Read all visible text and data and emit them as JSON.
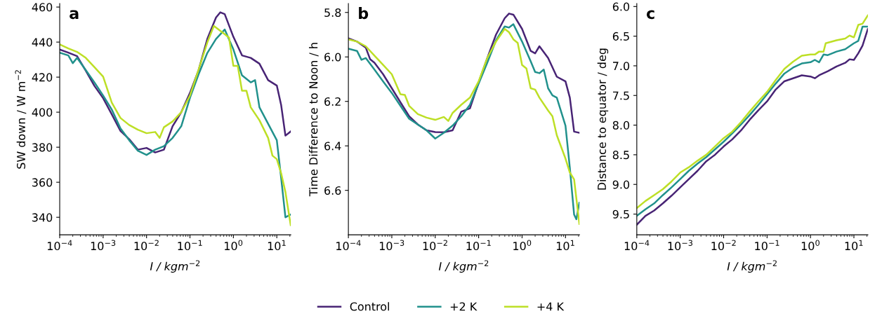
{
  "chart_data": [
    {
      "type": "line",
      "title": "a",
      "xlabel": "I / kgm$^{−2}$",
      "ylabel": "SW down / W m$^{−2}$",
      "log": "x",
      "legend": "bottom",
      "grid": false,
      "xlim": [
        0.0001,
        21
      ],
      "xticks": [
        {
          "value": 0.0001,
          "label": "10$^{−4}$"
        },
        {
          "value": 0.001,
          "label": "10$^{−3}$"
        },
        {
          "value": 0.01,
          "label": "10$^{−2}$"
        },
        {
          "value": 0.1,
          "label": "10$^{−1}$"
        },
        {
          "value": 1,
          "label": "10$^{0}$"
        },
        {
          "value": 10,
          "label": "10$^{1}$"
        }
      ],
      "ylim": [
        330,
        462
      ],
      "yticks": [
        340,
        360,
        380,
        400,
        420,
        440,
        460
      ],
      "series": [
        {
          "name": "Control",
          "color": "#482475",
          "x": [
            0.0001,
            0.000158,
            0.000251,
            0.000398,
            0.000631,
            0.001,
            0.00158,
            0.00251,
            0.00398,
            0.00631,
            0.01,
            0.0158,
            0.0251,
            0.0398,
            0.0631,
            0.1,
            0.158,
            0.251,
            0.398,
            0.501,
            0.631,
            1,
            1.58,
            2.51,
            3.98,
            6.31,
            10,
            12.6,
            15.8,
            20.9
          ],
          "values": [
            435.8,
            434,
            432,
            423.7,
            415,
            408,
            398.8,
            389.3,
            384.6,
            378.6,
            379.6,
            377,
            378.6,
            392,
            400,
            411,
            424,
            441.8,
            454,
            457,
            456,
            443,
            432.4,
            431,
            427.7,
            418.3,
            415.2,
            404,
            386.6,
            389
          ]
        },
        {
          "name": "+2 K",
          "color": "#21918c",
          "x": [
            0.0001,
            0.000158,
            0.0002,
            0.000251,
            0.000398,
            0.000631,
            0.001,
            0.00158,
            0.00251,
            0.00398,
            0.00631,
            0.01,
            0.0158,
            0.0251,
            0.0398,
            0.0631,
            0.1,
            0.158,
            0.251,
            0.398,
            0.631,
            1,
            1.58,
            2.51,
            3.16,
            3.98,
            6.31,
            10,
            12.6,
            15.8,
            20.9
          ],
          "values": [
            434,
            432.4,
            428,
            431,
            424,
            417,
            409.5,
            401.5,
            390.7,
            384,
            378,
            375.6,
            378.6,
            380.6,
            385.3,
            392,
            408.2,
            421.6,
            433.8,
            441.8,
            447.2,
            435.8,
            421,
            417,
            418.3,
            402.8,
            393.4,
            384,
            362.4,
            340,
            341.6
          ]
        },
        {
          "name": "+4 K",
          "color": "#bddf26",
          "x": [
            0.0001,
            0.000158,
            0.000251,
            0.000398,
            0.000631,
            0.001,
            0.00158,
            0.00251,
            0.00398,
            0.00631,
            0.01,
            0.0158,
            0.02,
            0.0251,
            0.0398,
            0.0631,
            0.1,
            0.158,
            0.251,
            0.355,
            0.631,
            0.794,
            1,
            1.26,
            1.58,
            2,
            2.51,
            3.98,
            6.31,
            7.94,
            10,
            12.6,
            15.8,
            20.9
          ],
          "values": [
            438.7,
            436.4,
            434.4,
            431,
            425.7,
            420.3,
            405.5,
            396.7,
            392.7,
            390,
            388,
            388.7,
            385.3,
            391.4,
            394.7,
            400,
            409.5,
            424.3,
            439.8,
            449.2,
            444.5,
            442.5,
            426.4,
            426.4,
            412.2,
            412.2,
            402.8,
            395.4,
            385.3,
            375.2,
            373.2,
            365.1,
            354.4,
            335.5
          ]
        }
      ]
    },
    {
      "type": "line",
      "title": "b",
      "xlabel": "I / kgm$^{−2}$",
      "ylabel": "Time Difference to Noon / h",
      "log": "x",
      "grid": false,
      "xlim": [
        0.0001,
        21
      ],
      "xticks": [
        {
          "value": 0.0001,
          "label": "10$^{−4}$"
        },
        {
          "value": 0.001,
          "label": "10$^{−3}$"
        },
        {
          "value": 0.01,
          "label": "10$^{−2}$"
        },
        {
          "value": 0.1,
          "label": "10$^{−1}$"
        },
        {
          "value": 1,
          "label": "10$^{0}$"
        },
        {
          "value": 10,
          "label": "10$^{1}$"
        }
      ],
      "ylim": [
        6.8,
        5.76
      ],
      "yticks": [
        5.8,
        {
          "value": 6,
          "label": "6.0"
        },
        6.2,
        6.4,
        6.6
      ],
      "series": [
        {
          "color": "#482475",
          "x": [
            0.0001,
            0.000158,
            0.000251,
            0.000316,
            0.000398,
            0.000631,
            0.001,
            0.00158,
            0.00251,
            0.00398,
            0.00631,
            0.01,
            0.0158,
            0.0251,
            0.0398,
            0.0631,
            0.1,
            0.158,
            0.251,
            0.398,
            0.501,
            0.631,
            1,
            1.58,
            2,
            2.51,
            3.98,
            6.31,
            10,
            12.6,
            15.8,
            20.9
          ],
          "values": [
            5.916,
            5.931,
            5.958,
            6.01,
            6.026,
            6.078,
            6.141,
            6.204,
            6.267,
            6.304,
            6.33,
            6.338,
            6.339,
            6.33,
            6.246,
            6.231,
            6.115,
            6.005,
            5.9,
            5.826,
            5.805,
            5.81,
            5.874,
            5.973,
            5.984,
            5.952,
            6.005,
            6.089,
            6.11,
            6.183,
            6.336,
            6.341
          ]
        },
        {
          "color": "#21918c",
          "x": [
            0.0001,
            0.000158,
            0.0002,
            0.000251,
            0.000398,
            0.000631,
            0.001,
            0.00158,
            0.00251,
            0.00398,
            0.00631,
            0.01,
            0.0158,
            0.0251,
            0.0398,
            0.0631,
            0.1,
            0.158,
            0.251,
            0.398,
            0.501,
            0.631,
            1,
            1.58,
            2,
            2.51,
            3.16,
            3.98,
            5.01,
            6.31,
            10,
            12.6,
            15.8,
            17.8,
            20.9
          ],
          "values": [
            5.963,
            5.973,
            6.013,
            6.005,
            6.057,
            6.11,
            6.162,
            6.22,
            6.278,
            6.304,
            6.33,
            6.367,
            6.341,
            6.309,
            6.267,
            6.215,
            6.12,
            6.026,
            5.926,
            5.863,
            5.868,
            5.853,
            5.931,
            6.02,
            6.068,
            6.073,
            6.057,
            6.141,
            6.173,
            6.183,
            6.309,
            6.499,
            6.709,
            6.73,
            6.656
          ]
        },
        {
          "color": "#bddf26",
          "x": [
            0.0001,
            0.000158,
            0.000251,
            0.000398,
            0.000631,
            0.001,
            0.00158,
            0.002,
            0.00251,
            0.00398,
            0.00631,
            0.01,
            0.0158,
            0.02,
            0.0251,
            0.0398,
            0.0631,
            0.1,
            0.158,
            0.251,
            0.398,
            0.501,
            0.631,
            0.794,
            1,
            1.26,
            1.58,
            2,
            2.51,
            3.98,
            5.01,
            6.31,
            10,
            12.6,
            15.8,
            20.9
          ],
          "values": [
            5.921,
            5.931,
            5.952,
            5.994,
            6.036,
            6.078,
            6.168,
            6.171,
            6.22,
            6.257,
            6.273,
            6.283,
            6.27,
            6.288,
            6.252,
            6.215,
            6.183,
            6.11,
            6.005,
            5.931,
            5.874,
            5.889,
            5.921,
            5.937,
            6.036,
            6.052,
            6.141,
            6.147,
            6.183,
            6.241,
            6.267,
            6.352,
            6.457,
            6.52,
            6.551,
            6.751
          ]
        }
      ]
    },
    {
      "type": "line",
      "title": "c",
      "xlabel": "I / kgm$^{−2}$",
      "ylabel": "Distance to equator / deg",
      "log": "x",
      "grid": false,
      "xlim": [
        0.0001,
        21
      ],
      "xticks": [
        {
          "value": 0.0001,
          "label": "10$^{−4}$"
        },
        {
          "value": 0.001,
          "label": "10$^{−3}$"
        },
        {
          "value": 0.01,
          "label": "10$^{−2}$"
        },
        {
          "value": 0.1,
          "label": "10$^{−1}$"
        },
        {
          "value": 1,
          "label": "10$^{0}$"
        },
        {
          "value": 10,
          "label": "10$^{1}$"
        }
      ],
      "ylim": [
        9.85,
        5.95
      ],
      "yticks": [
        {
          "value": 6,
          "label": "6.0"
        },
        6.5,
        {
          "value": 7,
          "label": "7.0"
        },
        7.5,
        {
          "value": 8,
          "label": "8.0"
        },
        8.5,
        {
          "value": 9,
          "label": "9.0"
        },
        9.5
      ],
      "series": [
        {
          "color": "#482475",
          "x": [
            0.0001,
            0.000158,
            0.000251,
            0.000398,
            0.000631,
            0.001,
            0.00158,
            0.00251,
            0.00398,
            0.00631,
            0.01,
            0.0158,
            0.0251,
            0.0398,
            0.0631,
            0.1,
            0.158,
            0.251,
            0.398,
            0.631,
            1,
            1.26,
            1.58,
            2.51,
            3.98,
            6.31,
            7.94,
            10,
            12.6,
            15.8,
            20.9
          ],
          "values": [
            9.68,
            9.53,
            9.44,
            9.32,
            9.19,
            9.05,
            8.91,
            8.77,
            8.61,
            8.5,
            8.36,
            8.24,
            8.09,
            7.91,
            7.75,
            7.6,
            7.4,
            7.26,
            7.21,
            7.16,
            7.18,
            7.21,
            7.16,
            7.09,
            7.01,
            6.95,
            6.89,
            6.9,
            6.79,
            6.66,
            6.38
          ]
        },
        {
          "color": "#21918c",
          "x": [
            0.0001,
            0.000158,
            0.000251,
            0.000398,
            0.000631,
            0.001,
            0.00158,
            0.00251,
            0.00398,
            0.00631,
            0.01,
            0.0158,
            0.0251,
            0.0398,
            0.0631,
            0.1,
            0.158,
            0.251,
            0.398,
            0.631,
            1,
            1.26,
            1.58,
            2,
            2.51,
            3.98,
            6.31,
            10,
            12.6,
            15.8,
            20.9
          ],
          "values": [
            9.53,
            9.42,
            9.32,
            9.18,
            9.05,
            8.91,
            8.77,
            8.65,
            8.54,
            8.41,
            8.28,
            8.14,
            7.99,
            7.83,
            7.66,
            7.48,
            7.3,
            7.13,
            7.03,
            6.96,
            6.94,
            6.9,
            6.94,
            6.81,
            6.82,
            6.76,
            6.72,
            6.62,
            6.58,
            6.34,
            6.34
          ]
        },
        {
          "color": "#bddf26",
          "x": [
            0.0001,
            0.000158,
            0.000251,
            0.000398,
            0.000631,
            0.001,
            0.00158,
            0.00251,
            0.00398,
            0.00631,
            0.01,
            0.0158,
            0.0251,
            0.0398,
            0.0631,
            0.1,
            0.158,
            0.251,
            0.398,
            0.631,
            1,
            1.26,
            1.58,
            2,
            2.24,
            3.98,
            6.31,
            7.94,
            10,
            12.6,
            15.8,
            20.9
          ],
          "values": [
            9.4,
            9.28,
            9.18,
            9.08,
            8.95,
            8.8,
            8.71,
            8.6,
            8.5,
            8.36,
            8.22,
            8.11,
            7.95,
            7.77,
            7.6,
            7.44,
            7.24,
            7.05,
            6.93,
            6.83,
            6.81,
            6.81,
            6.76,
            6.76,
            6.62,
            6.57,
            6.54,
            6.49,
            6.52,
            6.31,
            6.29,
            6.15
          ]
        }
      ]
    }
  ]
}
